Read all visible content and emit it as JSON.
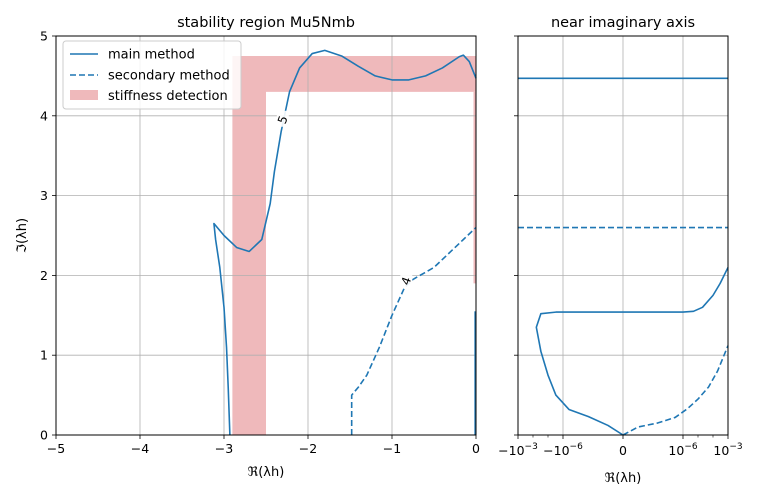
{
  "colors": {
    "main": "#1f77b4",
    "stiffness": "#eba8aa",
    "grid": "#b0b0b0",
    "axes": "#000000",
    "legend_border": "#cccccc",
    "background": "#ffffff"
  },
  "chart_data": [
    {
      "panel": "left",
      "type": "line",
      "title": "stability region Mu5Nmb",
      "xlabel": "ℜ(λh)",
      "ylabel": "ℑ(λh)",
      "xlim": [
        -5,
        0
      ],
      "ylim": [
        0,
        5
      ],
      "xticks": [
        -5,
        -4,
        -3,
        -2,
        -1,
        0
      ],
      "xtick_labels": [
        "−5",
        "−4",
        "−3",
        "−2",
        "−1",
        "0"
      ],
      "yticks": [
        0,
        1,
        2,
        3,
        4,
        5
      ],
      "ytick_labels": [
        "0",
        "1",
        "2",
        "3",
        "4",
        "5"
      ],
      "grid": true,
      "legend": {
        "position": "top-left",
        "entries": [
          {
            "label": "main method",
            "style": "solid",
            "color": "#1f77b4"
          },
          {
            "label": "secondary method",
            "style": "dashed",
            "color": "#1f77b4"
          },
          {
            "label": "stiffness detection",
            "style": "patch",
            "color": "#eba8aa"
          }
        ]
      },
      "stiffness_region": [
        [
          [
            -2.9,
            0
          ],
          [
            -2.9,
            4.75
          ],
          [
            0,
            4.75
          ],
          [
            0,
            4.3
          ],
          [
            -2.5,
            4.3
          ],
          [
            -2.5,
            0
          ]
        ],
        [
          [
            -0.03,
            4.3
          ],
          [
            0,
            4.3
          ],
          [
            0,
            1.9
          ],
          [
            -0.03,
            1.9
          ]
        ]
      ],
      "series": [
        {
          "name": "main method",
          "style": "solid",
          "segments": [
            [
              [
                -2.93,
                0
              ],
              [
                -2.95,
                0.6
              ],
              [
                -2.97,
                1.1
              ],
              [
                -3.0,
                1.6
              ],
              [
                -3.05,
                2.1
              ],
              [
                -3.1,
                2.45
              ],
              [
                -3.12,
                2.65
              ],
              [
                -3.0,
                2.5
              ],
              [
                -2.85,
                2.35
              ],
              [
                -2.7,
                2.3
              ],
              [
                -2.55,
                2.45
              ],
              [
                -2.45,
                2.9
              ],
              [
                -2.4,
                3.3
              ],
              [
                -2.32,
                3.8
              ],
              [
                -2.22,
                4.3
              ],
              [
                -2.1,
                4.6
              ],
              [
                -1.95,
                4.78
              ],
              [
                -1.8,
                4.82
              ],
              [
                -1.6,
                4.75
              ],
              [
                -1.4,
                4.62
              ],
              [
                -1.2,
                4.5
              ],
              [
                -1.0,
                4.45
              ],
              [
                -0.8,
                4.45
              ],
              [
                -0.6,
                4.5
              ],
              [
                -0.4,
                4.6
              ],
              [
                -0.2,
                4.74
              ],
              [
                -0.15,
                4.76
              ],
              [
                -0.08,
                4.68
              ],
              [
                0,
                4.47
              ]
            ],
            [
              [
                -0.01,
                0
              ],
              [
                -0.01,
                1.55
              ]
            ]
          ]
        },
        {
          "name": "secondary method",
          "style": "dashed",
          "segments": [
            [
              [
                -1.48,
                0
              ],
              [
                -1.48,
                0.5
              ],
              [
                -1.4,
                0.6
              ],
              [
                -1.3,
                0.75
              ],
              [
                -1.15,
                1.1
              ],
              [
                -1.0,
                1.5
              ],
              [
                -0.85,
                1.85
              ],
              [
                -0.75,
                1.95
              ],
              [
                -0.5,
                2.1
              ],
              [
                -0.3,
                2.3
              ],
              [
                -0.15,
                2.45
              ],
              [
                0,
                2.6
              ]
            ]
          ]
        }
      ],
      "contour_labels": [
        {
          "text": "5",
          "x": -2.3,
          "y": 3.95,
          "series": "main method"
        },
        {
          "text": "4",
          "x": -0.83,
          "y": 1.93,
          "series": "secondary method"
        }
      ]
    },
    {
      "panel": "right",
      "type": "line",
      "title": "near imaginary axis",
      "xlabel": "ℜ(λh)",
      "xscale": "symlog",
      "xlim": [
        -0.001,
        0.001
      ],
      "ylim": [
        0,
        5
      ],
      "xticks": [
        -0.001,
        -1e-06,
        0,
        1e-06,
        0.001
      ],
      "grid": true,
      "series": [
        {
          "name": "main method",
          "style": "solid",
          "segments": [
            [
              [
                -0.001,
                4.47
              ],
              [
                0.001,
                4.47
              ]
            ],
            [
              [
                0,
                0
              ],
              [
                -1e-09,
                0.12
              ],
              [
                -2e-08,
                0.23
              ],
              [
                -4e-07,
                0.32
              ],
              [
                -3e-06,
                0.5
              ],
              [
                -1e-05,
                0.75
              ],
              [
                -3e-05,
                1.05
              ],
              [
                -6e-05,
                1.35
              ],
              [
                -3e-05,
                1.52
              ],
              [
                -3e-06,
                1.54
              ],
              [
                0,
                1.54
              ],
              [
                1e-06,
                1.54
              ],
              [
                5e-06,
                1.55
              ],
              [
                2e-05,
                1.6
              ],
              [
                0.0001,
                1.75
              ],
              [
                0.0003,
                1.9
              ],
              [
                0.001,
                2.1
              ]
            ]
          ]
        },
        {
          "name": "secondary method",
          "style": "dashed",
          "segments": [
            [
              [
                -0.001,
                2.6
              ],
              [
                0.001,
                2.6
              ]
            ],
            [
              [
                0,
                0
              ],
              [
                1e-09,
                0.1
              ],
              [
                2e-08,
                0.15
              ],
              [
                3e-07,
                0.22
              ],
              [
                2e-06,
                0.33
              ],
              [
                1e-05,
                0.45
              ],
              [
                5e-05,
                0.6
              ],
              [
                0.0002,
                0.8
              ],
              [
                0.001,
                1.12
              ]
            ]
          ]
        }
      ]
    }
  ]
}
